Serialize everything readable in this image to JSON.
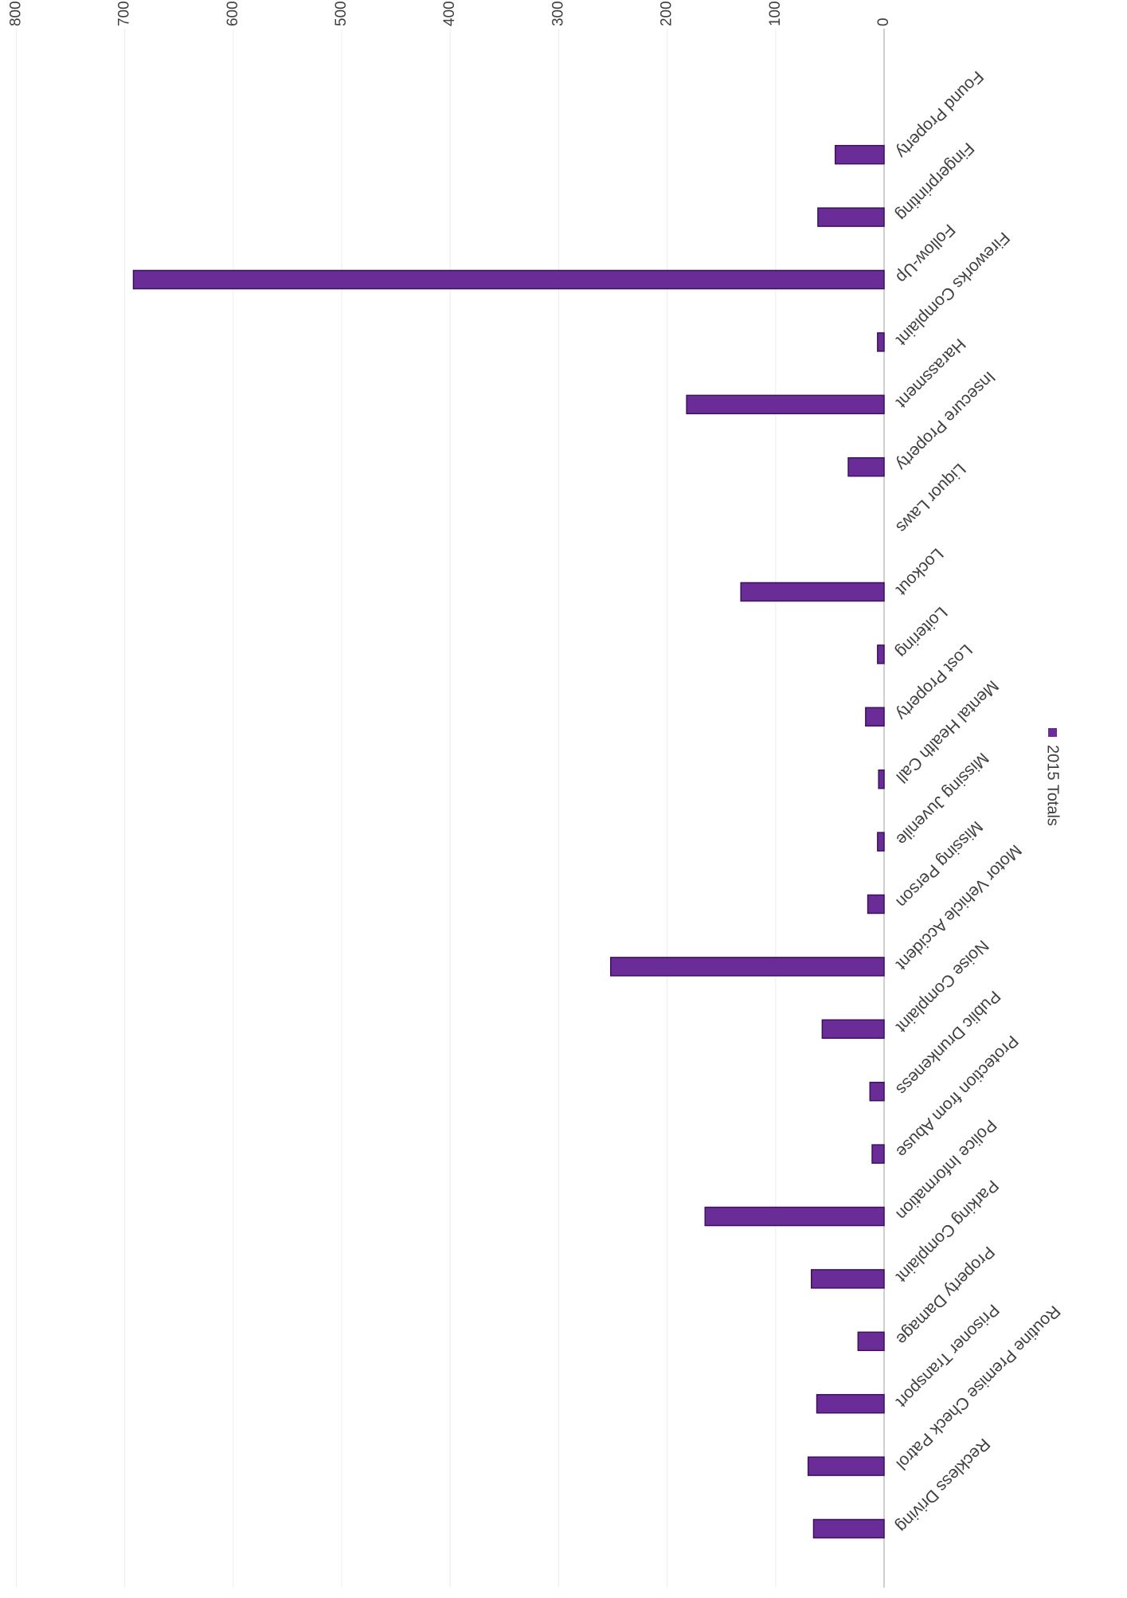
{
  "chart_data": {
    "type": "bar",
    "orientation": "horizontal",
    "categories": [
      "Reckless Driving",
      "Routine Premise Check Patrol",
      "Prisoner Transport",
      "Property Damage",
      "Parking Complaint",
      "Police Information",
      "Protection from Abuse",
      "Public Drunkeness",
      "Noise Complaint",
      "Motor Vehicle Accident",
      "Missing Person",
      "Missing Juvenile",
      "Mental Health Call",
      "Lost Property",
      "Loitering",
      "Lockout",
      "Liquor Laws",
      "Insecure Property",
      "Harassment",
      "Fireworks Complaint",
      "Follow-Up",
      "Fingerprinting",
      "Found Property"
    ],
    "series": [
      {
        "name": "2015 Totals",
        "values": [
          65,
          70,
          62,
          24,
          67,
          165,
          11,
          13,
          57,
          252,
          15,
          6,
          5,
          17,
          6,
          132,
          0,
          33,
          182,
          6,
          692,
          61,
          45
        ]
      }
    ],
    "xlim": [
      0,
      800
    ],
    "ticks": [
      "0",
      "100",
      "200",
      "300",
      "400",
      "500",
      "600",
      "700",
      "800"
    ],
    "grid": true,
    "legend_position": "bottom",
    "colors": {
      "bar": "#6a2c96",
      "bar_edge": "#3d1060",
      "grid": "#ececec",
      "text": "#404040"
    }
  }
}
